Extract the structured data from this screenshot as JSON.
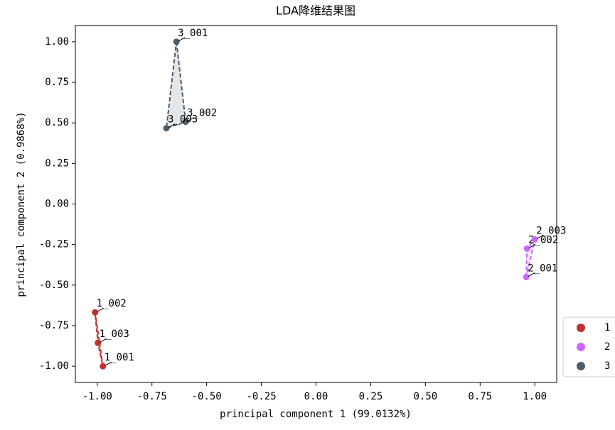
{
  "chart_data": {
    "type": "scatter",
    "title": "LDA降维结果图",
    "x_label": "principal component 1 (99.0132%)",
    "y_label": "principal component 2 (0.9868%)",
    "xlim": [
      -1.1,
      1.1
    ],
    "ylim": [
      -1.1,
      1.1
    ],
    "xticks": [
      {
        "value": -1,
        "label": "-1.00"
      },
      {
        "value": -0.75,
        "label": "-0.75"
      },
      {
        "value": -0.5,
        "label": "-0.50"
      },
      {
        "value": -0.25,
        "label": "-0.25"
      },
      {
        "value": 0,
        "label": "0.00"
      },
      {
        "value": 0.25,
        "label": "0.25"
      },
      {
        "value": 0.5,
        "label": "0.50"
      },
      {
        "value": 0.75,
        "label": "0.75"
      },
      {
        "value": 1,
        "label": "1.00"
      }
    ],
    "yticks": [
      {
        "value": 1,
        "label": "1.00"
      },
      {
        "value": 0.75,
        "label": "0.75"
      },
      {
        "value": 0.5,
        "label": "0.50"
      },
      {
        "value": 0.25,
        "label": "0.25"
      },
      {
        "value": 0,
        "label": "0.00"
      },
      {
        "value": -0.25,
        "label": "-0.25"
      },
      {
        "value": -0.5,
        "label": "-0.50"
      },
      {
        "value": -0.75,
        "label": "-0.75"
      },
      {
        "value": -1,
        "label": "-1.00"
      }
    ],
    "legend": "outside-lower-right",
    "series": [
      {
        "name": "1",
        "color": "#c0302e",
        "x": [
          -0.974,
          -1.01,
          -0.997
        ],
        "y": [
          -1.0,
          -0.668,
          -0.856
        ],
        "labels": [
          "1_001",
          "1_002",
          "1_003"
        ]
      },
      {
        "name": "2",
        "color": "#cc66ff",
        "x": [
          0.961,
          0.964,
          1.0
        ],
        "y": [
          -0.45,
          -0.275,
          -0.218
        ],
        "labels": [
          "2_001",
          "2_002",
          "2_003"
        ]
      },
      {
        "name": "3",
        "color": "#4b5d6b",
        "x": [
          -0.638,
          -0.596,
          -0.684
        ],
        "y": [
          1.0,
          0.507,
          0.467
        ],
        "labels": [
          "3_001",
          "3_002",
          "3_003"
        ]
      }
    ]
  }
}
